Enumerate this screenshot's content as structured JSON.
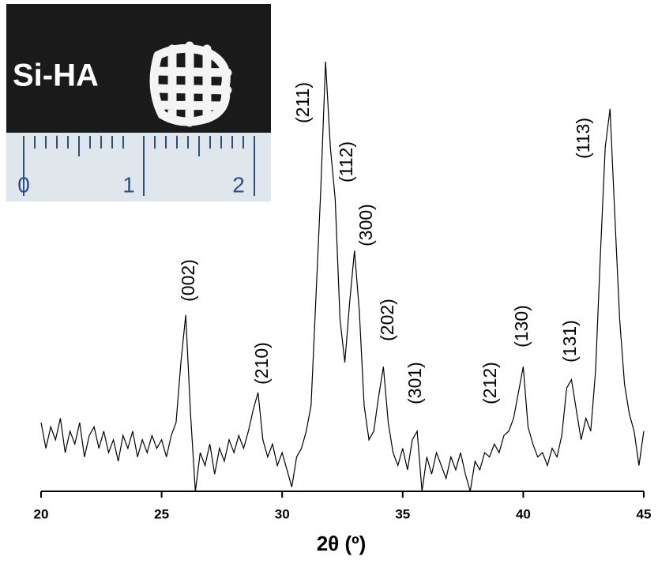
{
  "inset": {
    "label": "Si-HA",
    "ruler_labels": [
      "0",
      "1",
      "2"
    ]
  },
  "chart_data": {
    "type": "line",
    "xlabel": "2θ (º)",
    "color": "#000000",
    "x": [
      20.0,
      20.2,
      20.4,
      20.6,
      20.8,
      21.0,
      21.2,
      21.4,
      21.6,
      21.8,
      22.0,
      22.2,
      22.4,
      22.6,
      22.8,
      23.0,
      23.2,
      23.4,
      23.6,
      23.8,
      24.0,
      24.2,
      24.4,
      24.6,
      24.8,
      25.0,
      25.2,
      25.4,
      25.6,
      25.8,
      26.0,
      26.2,
      26.4,
      26.6,
      26.8,
      27.0,
      27.2,
      27.4,
      27.6,
      27.8,
      28.0,
      28.2,
      28.4,
      28.6,
      28.8,
      29.0,
      29.2,
      29.4,
      29.6,
      29.8,
      30.0,
      30.2,
      30.4,
      30.6,
      30.8,
      31.0,
      31.2,
      31.4,
      31.6,
      31.8,
      32.0,
      32.2,
      32.4,
      32.6,
      32.8,
      33.0,
      33.2,
      33.4,
      33.6,
      33.8,
      34.0,
      34.2,
      34.4,
      34.6,
      34.8,
      35.0,
      35.2,
      35.4,
      35.6,
      35.8,
      36.0,
      36.2,
      36.4,
      36.6,
      36.8,
      37.0,
      37.2,
      37.4,
      37.6,
      37.8,
      38.0,
      38.2,
      38.4,
      38.6,
      38.8,
      39.0,
      39.2,
      39.4,
      39.6,
      39.8,
      40.0,
      40.2,
      40.4,
      40.6,
      40.8,
      41.0,
      41.2,
      41.4,
      41.6,
      41.8,
      42.0,
      42.2,
      42.4,
      42.6,
      42.8,
      43.0,
      43.2,
      43.4,
      43.6,
      43.8,
      44.0,
      44.2,
      44.4,
      44.6,
      44.8,
      45.0
    ],
    "values": [
      16,
      10,
      15,
      12,
      17,
      9,
      14,
      11,
      16,
      8,
      13,
      15,
      10,
      14,
      9,
      12,
      7,
      13,
      10,
      14,
      8,
      12,
      9,
      13,
      10,
      12,
      8,
      13,
      16,
      30,
      41,
      18,
      0,
      9,
      6,
      11,
      4,
      10,
      7,
      12,
      9,
      13,
      10,
      14,
      19,
      23,
      12,
      8,
      11,
      6,
      9,
      5,
      1,
      8,
      10,
      14,
      20,
      45,
      70,
      100,
      80,
      68,
      40,
      30,
      44,
      56,
      42,
      20,
      12,
      14,
      22,
      29,
      16,
      9,
      6,
      10,
      5,
      12,
      14,
      0,
      8,
      4,
      9,
      6,
      3,
      8,
      5,
      9,
      4,
      0,
      7,
      5,
      9,
      8,
      11,
      9,
      13,
      14,
      17,
      23,
      29,
      15,
      11,
      8,
      9,
      6,
      10,
      8,
      13,
      24,
      26,
      19,
      12,
      17,
      14,
      28,
      55,
      80,
      89,
      64,
      40,
      25,
      18,
      14,
      6,
      14
    ],
    "xlim": [
      20,
      45
    ],
    "xticks": [
      20,
      25,
      30,
      35,
      40,
      45
    ],
    "ylim": [
      0,
      100
    ],
    "annotations": [
      "(002)",
      "(210)",
      "(211)",
      "(112)",
      "(300)",
      "(202)",
      "(301)",
      "(212)",
      "(130)",
      "(131)",
      "(113)"
    ]
  }
}
